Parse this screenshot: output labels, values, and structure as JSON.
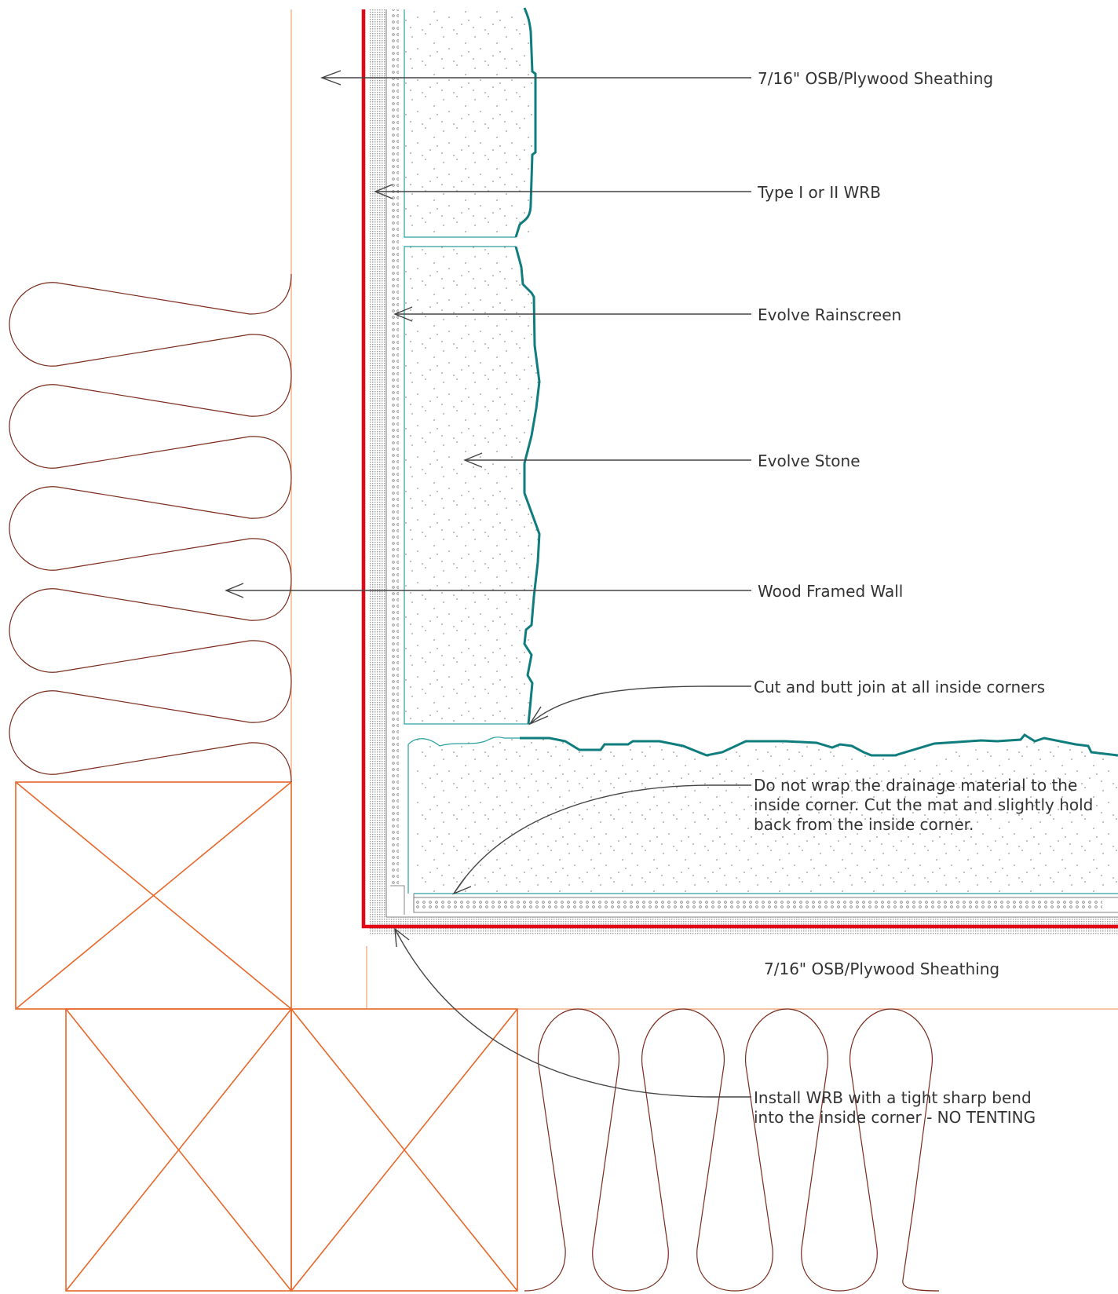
{
  "diagram": {
    "colors": {
      "framing": "#e8672a",
      "sheathing_line": "#f0a070",
      "wrb": "#e30613",
      "stone_outline": "#2aa0a0",
      "stone_face": "#0f7d7d",
      "insulation": "#7a2a1a",
      "callout": "#444444",
      "text": "#333333"
    },
    "callouts": {
      "osb_top": "7/16\" OSB/Plywood Sheathing",
      "wrb": "Type I or II WRB",
      "rainscreen": "Evolve Rainscreen",
      "stone": "Evolve Stone",
      "wall": "Wood Framed Wall",
      "butt_join": "Cut and butt join at all inside corners",
      "drainage": "Do not wrap the drainage material to the inside corner. Cut the mat and slightly hold back from the inside corner.",
      "osb_bottom": "7/16\" OSB/Plywood Sheathing",
      "install_wrb": "Install WRB with a tight sharp bend into the inside corner - NO TENTING"
    }
  }
}
